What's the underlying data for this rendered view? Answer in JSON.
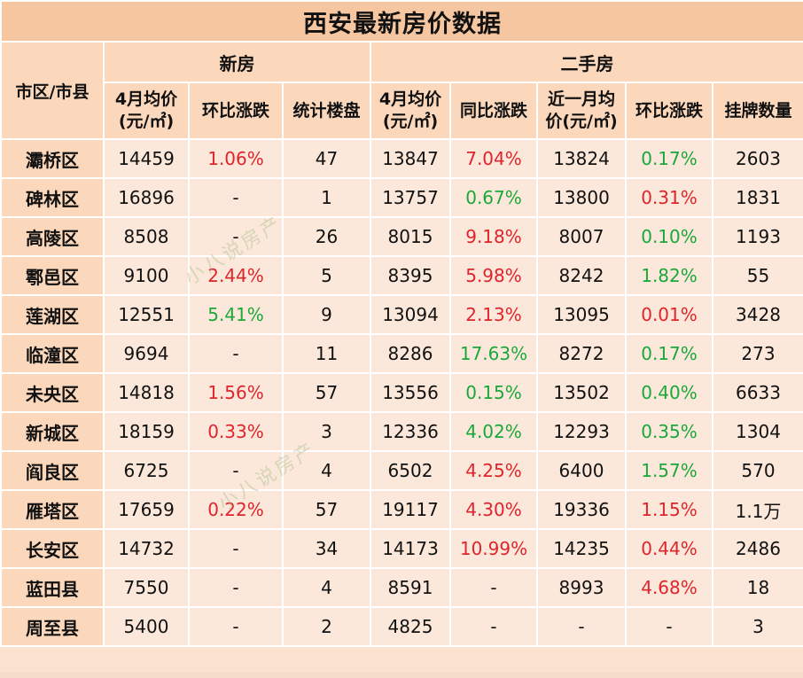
{
  "title": "西安最新房价数据",
  "headers": {
    "region": "市区/市县",
    "new_group": "新房",
    "second_group": "二手房",
    "new_avg_line1": "4月均价",
    "new_avg_line2": "(元/㎡)",
    "new_mom": "环比涨跌",
    "new_count": "统计楼盘",
    "sec_avg_line1": "4月均价",
    "sec_avg_line2": "(元/㎡)",
    "sec_yoy": "同比涨跌",
    "sec_month_line1": "近一月均",
    "sec_month_line2": "价(元/㎡)",
    "sec_mom": "环比涨跌",
    "sec_listings": "挂牌数量"
  },
  "watermark": "小八说房产",
  "colors": {
    "up": "#e0242b",
    "down": "#1aa83a"
  },
  "rows": [
    {
      "region": "灞桥区",
      "new_avg": "14459",
      "new_mom": "1.06%",
      "new_mom_t": "up",
      "new_count": "47",
      "sec_avg": "13847",
      "sec_yoy": "7.04%",
      "sec_yoy_t": "up",
      "sec_month": "13824",
      "sec_mom": "0.17%",
      "sec_mom_t": "down",
      "listings": "2603"
    },
    {
      "region": "碑林区",
      "new_avg": "16896",
      "new_mom": "-",
      "new_mom_t": "flat",
      "new_count": "1",
      "sec_avg": "13757",
      "sec_yoy": "0.67%",
      "sec_yoy_t": "down",
      "sec_month": "13800",
      "sec_mom": "0.31%",
      "sec_mom_t": "up",
      "listings": "1831"
    },
    {
      "region": "高陵区",
      "new_avg": "8508",
      "new_mom": "-",
      "new_mom_t": "flat",
      "new_count": "26",
      "sec_avg": "8015",
      "sec_yoy": "9.18%",
      "sec_yoy_t": "up",
      "sec_month": "8007",
      "sec_mom": "0.10%",
      "sec_mom_t": "down",
      "listings": "1193"
    },
    {
      "region": "鄠邑区",
      "new_avg": "9100",
      "new_mom": "2.44%",
      "new_mom_t": "up",
      "new_count": "5",
      "sec_avg": "8395",
      "sec_yoy": "5.98%",
      "sec_yoy_t": "up",
      "sec_month": "8242",
      "sec_mom": "1.82%",
      "sec_mom_t": "down",
      "listings": "55"
    },
    {
      "region": "莲湖区",
      "new_avg": "12551",
      "new_mom": "5.41%",
      "new_mom_t": "down",
      "new_count": "9",
      "sec_avg": "13094",
      "sec_yoy": "2.13%",
      "sec_yoy_t": "up",
      "sec_month": "13095",
      "sec_mom": "0.01%",
      "sec_mom_t": "up",
      "listings": "3428"
    },
    {
      "region": "临潼区",
      "new_avg": "9694",
      "new_mom": "-",
      "new_mom_t": "flat",
      "new_count": "11",
      "sec_avg": "8286",
      "sec_yoy": "17.63%",
      "sec_yoy_t": "down",
      "sec_month": "8272",
      "sec_mom": "0.17%",
      "sec_mom_t": "down",
      "listings": "273"
    },
    {
      "region": "未央区",
      "new_avg": "14818",
      "new_mom": "1.56%",
      "new_mom_t": "up",
      "new_count": "57",
      "sec_avg": "13556",
      "sec_yoy": "0.15%",
      "sec_yoy_t": "down",
      "sec_month": "13502",
      "sec_mom": "0.40%",
      "sec_mom_t": "down",
      "listings": "6633"
    },
    {
      "region": "新城区",
      "new_avg": "18159",
      "new_mom": "0.33%",
      "new_mom_t": "up",
      "new_count": "3",
      "sec_avg": "12336",
      "sec_yoy": "4.02%",
      "sec_yoy_t": "down",
      "sec_month": "12293",
      "sec_mom": "0.35%",
      "sec_mom_t": "down",
      "listings": "1304"
    },
    {
      "region": "阎良区",
      "new_avg": "6725",
      "new_mom": "-",
      "new_mom_t": "flat",
      "new_count": "4",
      "sec_avg": "6502",
      "sec_yoy": "4.25%",
      "sec_yoy_t": "up",
      "sec_month": "6400",
      "sec_mom": "1.57%",
      "sec_mom_t": "down",
      "listings": "570"
    },
    {
      "region": "雁塔区",
      "new_avg": "17659",
      "new_mom": "0.22%",
      "new_mom_t": "up",
      "new_count": "57",
      "sec_avg": "19117",
      "sec_yoy": "4.30%",
      "sec_yoy_t": "up",
      "sec_month": "19336",
      "sec_mom": "1.15%",
      "sec_mom_t": "up",
      "listings": "1.1万"
    },
    {
      "region": "长安区",
      "new_avg": "14732",
      "new_mom": "-",
      "new_mom_t": "flat",
      "new_count": "34",
      "sec_avg": "14173",
      "sec_yoy": "10.99%",
      "sec_yoy_t": "up",
      "sec_month": "14235",
      "sec_mom": "0.44%",
      "sec_mom_t": "up",
      "listings": "2486"
    },
    {
      "region": "蓝田县",
      "new_avg": "7550",
      "new_mom": "-",
      "new_mom_t": "flat",
      "new_count": "4",
      "sec_avg": "8591",
      "sec_yoy": "-",
      "sec_yoy_t": "flat",
      "sec_month": "8993",
      "sec_mom": "4.68%",
      "sec_mom_t": "up",
      "listings": "18"
    },
    {
      "region": "周至县",
      "new_avg": "5400",
      "new_mom": "-",
      "new_mom_t": "flat",
      "new_count": "2",
      "sec_avg": "4825",
      "sec_yoy": "-",
      "sec_yoy_t": "flat",
      "sec_month": "-",
      "sec_mom": "-",
      "sec_mom_t": "flat",
      "listings": "3"
    }
  ]
}
